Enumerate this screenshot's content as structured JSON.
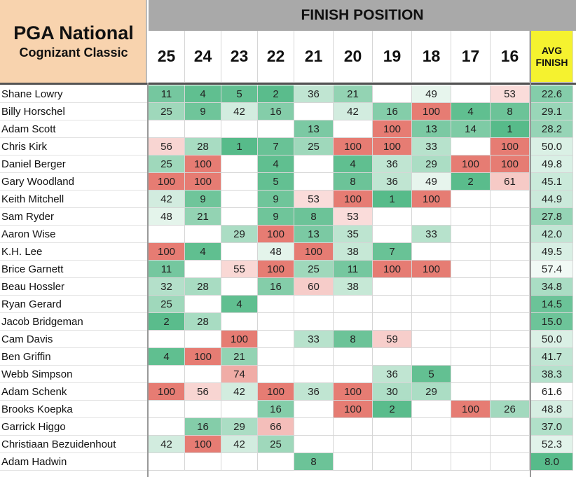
{
  "header": {
    "title": "PGA National",
    "subtitle": "Cognizant Classic",
    "group_label": "FINISH POSITION",
    "columns": [
      25,
      24,
      23,
      22,
      21,
      20,
      19,
      18,
      17,
      16
    ],
    "avg_label": "AVG FINISH"
  },
  "rows": [
    {
      "name": "Shane Lowry",
      "finishes": [
        11,
        4,
        5,
        2,
        36,
        21,
        null,
        49,
        null,
        53
      ],
      "avg": "22.6"
    },
    {
      "name": "Billy Horschel",
      "finishes": [
        25,
        9,
        42,
        16,
        null,
        42,
        16,
        100,
        4,
        8
      ],
      "avg": "29.1"
    },
    {
      "name": "Adam Scott",
      "finishes": [
        null,
        null,
        null,
        null,
        13,
        null,
        100,
        13,
        14,
        1
      ],
      "avg": "28.2"
    },
    {
      "name": "Chris Kirk",
      "finishes": [
        56,
        28,
        1,
        7,
        25,
        100,
        100,
        33,
        null,
        100
      ],
      "avg": "50.0"
    },
    {
      "name": "Daniel Berger",
      "finishes": [
        25,
        100,
        null,
        4,
        null,
        4,
        36,
        29,
        100,
        100
      ],
      "avg": "49.8"
    },
    {
      "name": "Gary Woodland",
      "finishes": [
        100,
        100,
        null,
        5,
        null,
        8,
        36,
        49,
        2,
        61
      ],
      "avg": "45.1"
    },
    {
      "name": "Keith Mitchell",
      "finishes": [
        42,
        9,
        null,
        9,
        53,
        100,
        1,
        100,
        null,
        null
      ],
      "avg": "44.9"
    },
    {
      "name": "Sam Ryder",
      "finishes": [
        48,
        21,
        null,
        9,
        8,
        53,
        null,
        null,
        null,
        null
      ],
      "avg": "27.8"
    },
    {
      "name": "Aaron Wise",
      "finishes": [
        null,
        null,
        29,
        100,
        13,
        35,
        null,
        33,
        null,
        null
      ],
      "avg": "42.0"
    },
    {
      "name": "K.H. Lee",
      "finishes": [
        100,
        4,
        null,
        48,
        100,
        38,
        7,
        null,
        null,
        null
      ],
      "avg": "49.5"
    },
    {
      "name": "Brice Garnett",
      "finishes": [
        11,
        null,
        55,
        100,
        25,
        11,
        100,
        100,
        null,
        null
      ],
      "avg": "57.4"
    },
    {
      "name": "Beau Hossler",
      "finishes": [
        32,
        28,
        null,
        16,
        60,
        38,
        null,
        null,
        null,
        null
      ],
      "avg": "34.8"
    },
    {
      "name": "Ryan Gerard",
      "finishes": [
        25,
        null,
        4,
        null,
        null,
        null,
        null,
        null,
        null,
        null
      ],
      "avg": "14.5"
    },
    {
      "name": "Jacob Bridgeman",
      "finishes": [
        2,
        28,
        null,
        null,
        null,
        null,
        null,
        null,
        null,
        null
      ],
      "avg": "15.0"
    },
    {
      "name": "Cam Davis",
      "finishes": [
        null,
        null,
        100,
        null,
        33,
        8,
        59,
        null,
        null,
        null
      ],
      "avg": "50.0"
    },
    {
      "name": "Ben Griffin",
      "finishes": [
        4,
        100,
        21,
        null,
        null,
        null,
        null,
        null,
        null,
        null
      ],
      "avg": "41.7"
    },
    {
      "name": "Webb Simpson",
      "finishes": [
        null,
        null,
        74,
        null,
        null,
        null,
        36,
        5,
        null,
        null
      ],
      "avg": "38.3"
    },
    {
      "name": "Adam Schenk",
      "finishes": [
        100,
        56,
        42,
        100,
        36,
        100,
        30,
        29,
        null,
        null
      ],
      "avg": "61.6"
    },
    {
      "name": "Brooks Koepka",
      "finishes": [
        null,
        null,
        null,
        16,
        null,
        100,
        2,
        null,
        100,
        26
      ],
      "avg": "48.8"
    },
    {
      "name": "Garrick Higgo",
      "finishes": [
        null,
        16,
        29,
        66,
        null,
        null,
        null,
        null,
        null,
        null
      ],
      "avg": "37.0"
    },
    {
      "name": "Christiaan Bezuidenhout",
      "finishes": [
        42,
        100,
        42,
        25,
        null,
        null,
        null,
        null,
        null,
        null
      ],
      "avg": "52.3"
    },
    {
      "name": "Adam Hadwin",
      "finishes": [
        null,
        null,
        null,
        null,
        8,
        null,
        null,
        null,
        null,
        null
      ],
      "avg": "8.0"
    }
  ]
}
